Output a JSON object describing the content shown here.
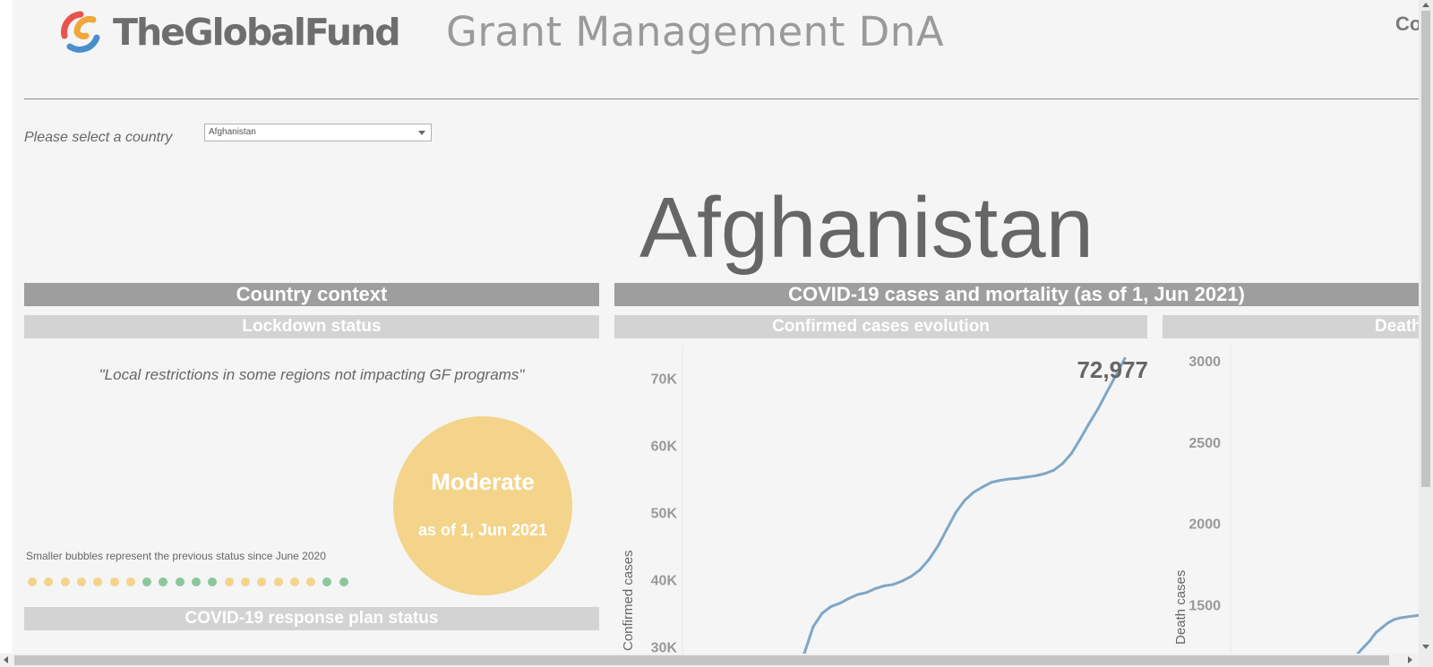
{
  "header": {
    "brand": "TheGlobalFund",
    "subtitle": "Grant Management DnA",
    "corner_text": "Co"
  },
  "selector": {
    "label": "Please select a country",
    "selected": "Afghanistan"
  },
  "country_title": "Afghanistan",
  "country_context": {
    "title": "Country context",
    "lockdown": {
      "title": "Lockdown status",
      "quote": "\"Local restrictions in some regions not impacting GF programs\"",
      "status": "Moderate",
      "as_of": "as of 1, Jun 2021",
      "bubble_note": "Smaller bubbles represent the previous status since June 2020",
      "history": [
        "moderate",
        "moderate",
        "moderate",
        "moderate",
        "moderate",
        "moderate",
        "moderate",
        "low",
        "low",
        "low",
        "low",
        "low",
        "moderate",
        "moderate",
        "moderate",
        "moderate",
        "moderate",
        "moderate",
        "low",
        "low"
      ]
    },
    "response_plan_title": "COVID-19 response plan status"
  },
  "covid": {
    "title": "COVID-19 cases and mortality (as of 1, Jun 2021)",
    "confirmed_title": "Confirmed cases evolution",
    "deaths_title": "Deaths"
  },
  "colors": {
    "moderate": "#f3d48a",
    "low": "#8cc79a",
    "line": "#7ea7c6",
    "bar_dark": "#9e9e9e",
    "bar_light": "#d3d3d3"
  },
  "chart_data": [
    {
      "type": "line",
      "title": "Confirmed cases evolution",
      "ylabel": "Confirmed cases",
      "yticks": [
        "70K",
        "60K",
        "50K",
        "40K",
        "30K"
      ],
      "ylim": [
        29000,
        75000
      ],
      "latest_label": "72,977",
      "series": [
        {
          "values": [
            29000,
            33000,
            35000,
            36000,
            36500,
            37200,
            37800,
            38100,
            38700,
            39100,
            39300,
            39800,
            40500,
            41500,
            43000,
            45000,
            47500,
            50000,
            51800,
            53000,
            53800,
            54500,
            54800,
            55000,
            55100,
            55300,
            55500,
            55800,
            56300,
            57300,
            58800,
            61000,
            63300,
            65500,
            68000,
            70500,
            72977
          ]
        }
      ]
    },
    {
      "type": "line",
      "title": "Deaths",
      "ylabel": "Death cases",
      "yticks": [
        "3000",
        "2500",
        "2000",
        "1500"
      ],
      "ylim": [
        1200,
        3100
      ],
      "series": [
        {
          "values": [
            1200,
            1240,
            1280,
            1330,
            1360,
            1390,
            1410,
            1420,
            1425,
            1430,
            1435
          ]
        }
      ]
    }
  ]
}
